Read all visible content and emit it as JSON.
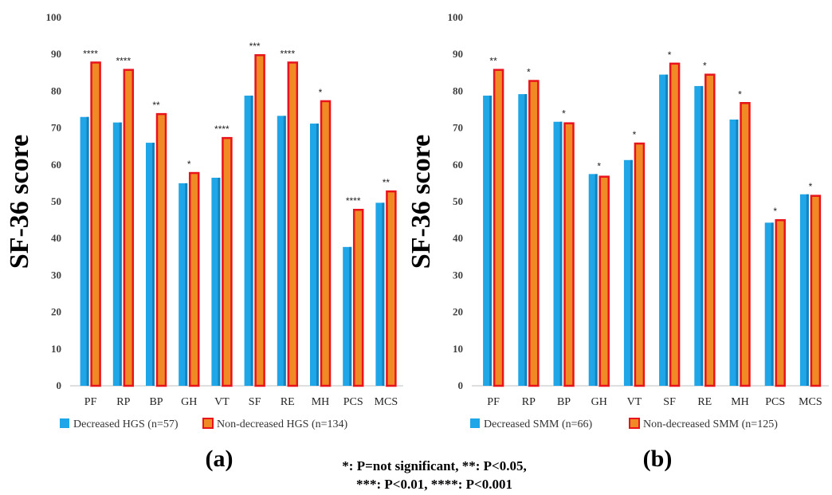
{
  "chart_data": [
    {
      "type": "bar",
      "panel_label": "(a)",
      "ylabel": "SF-36 score",
      "ylim": [
        0,
        100
      ],
      "yticks": [
        "0",
        "10",
        "20",
        "30",
        "40",
        "50",
        "60",
        "70",
        "80",
        "90",
        "100"
      ],
      "grid": false,
      "legend_position": "bottom",
      "categories": [
        "PF",
        "RP",
        "BP",
        "GH",
        "VT",
        "SF",
        "RE",
        "MH",
        "PCS",
        "MCS"
      ],
      "series": [
        {
          "name": "Decreased HGS (n=57)",
          "color": "#1fa6e8",
          "values": [
            73,
            71.5,
            66,
            55,
            56.5,
            78.8,
            73.3,
            71.2,
            37.7,
            49.7
          ]
        },
        {
          "name": "Non-decreased HGS (n=134)",
          "color": "#f08a24",
          "edge": "#e8131b",
          "values": [
            88,
            86,
            74,
            58,
            67.5,
            90,
            88,
            77.5,
            48,
            53
          ]
        }
      ],
      "annotations": [
        "****",
        "****",
        "**",
        "*",
        "****",
        "***",
        "****",
        "*",
        "****",
        "**"
      ]
    },
    {
      "type": "bar",
      "panel_label": "(b)",
      "ylabel": "SF-36 score",
      "ylim": [
        0,
        100
      ],
      "yticks": [
        "0",
        "10",
        "20",
        "30",
        "40",
        "50",
        "60",
        "70",
        "80",
        "90",
        "100"
      ],
      "grid": false,
      "legend_position": "bottom",
      "categories": [
        "PF",
        "RP",
        "BP",
        "GH",
        "VT",
        "SF",
        "RE",
        "MH",
        "PCS",
        "MCS"
      ],
      "series": [
        {
          "name": "Decreased SMM (n=66)",
          "color": "#1fa6e8",
          "values": [
            78.8,
            79.2,
            71.7,
            57.5,
            61.3,
            84.5,
            81.4,
            72.3,
            44.3,
            52
          ]
        },
        {
          "name": "Non-decreased SMM (n=125)",
          "color": "#f08a24",
          "edge": "#e8131b",
          "values": [
            86,
            83,
            71.5,
            57,
            66,
            87.7,
            84.7,
            77,
            45.2,
            51.8
          ]
        }
      ],
      "annotations": [
        "**",
        "*",
        "*",
        "*",
        "*",
        "*",
        "*",
        "*",
        "*",
        "*"
      ]
    }
  ],
  "footnote": {
    "line1": "*: P=not significant, **: P<0.05,",
    "line2": "***: P<0.01, ****: P<0.001"
  }
}
